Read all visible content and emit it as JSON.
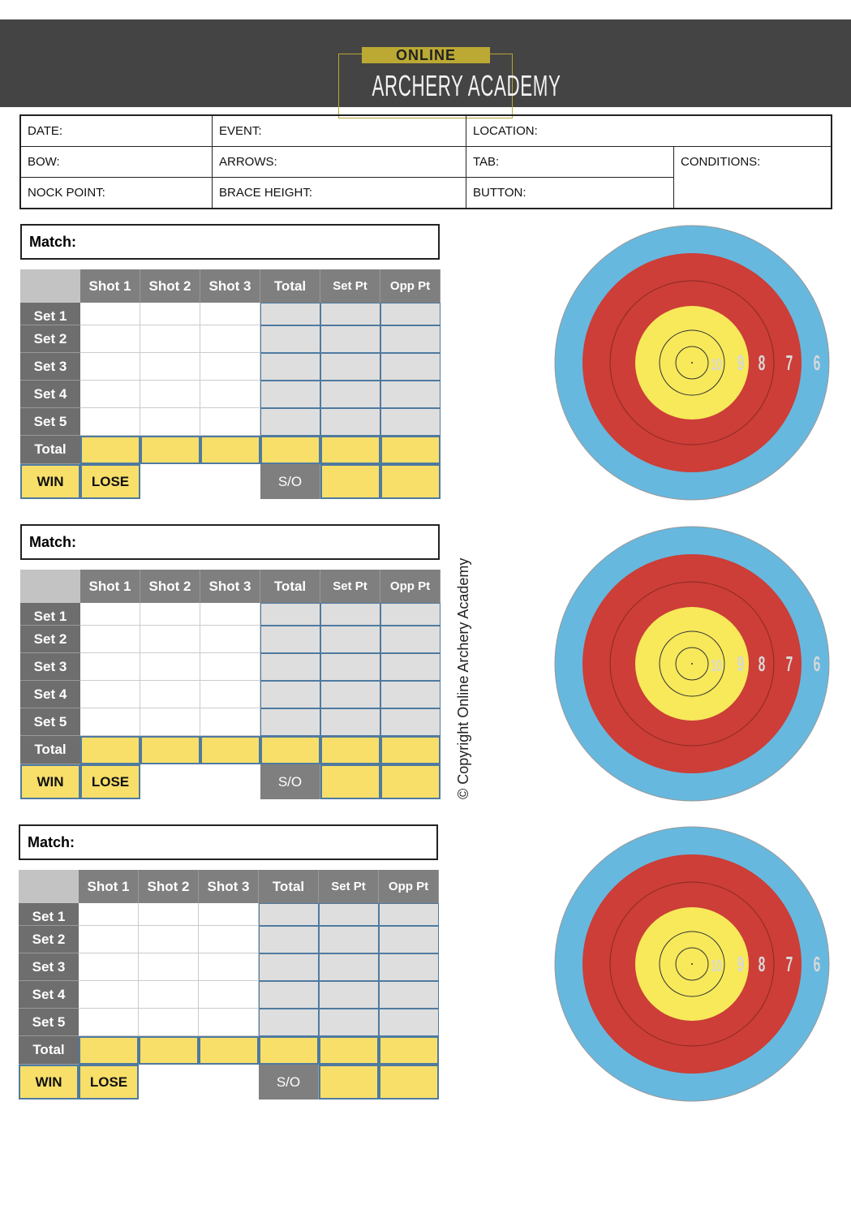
{
  "logo": {
    "top": "ONLINE",
    "main": "ARCHERY ACADEMY"
  },
  "info": {
    "date": "DATE:",
    "event": "EVENT:",
    "location": "LOCATION:",
    "bow": "BOW:",
    "arrows": "ARROWS:",
    "tab": "TAB:",
    "conditions": "CONDITIONS:",
    "nock_point": "NOCK POINT:",
    "brace_height": "BRACE HEIGHT:",
    "button": "BUTTON:"
  },
  "match_label": "Match:",
  "columns": [
    "Shot 1",
    "Shot 2",
    "Shot 3",
    "Total",
    "Set Pt",
    "Opp Pt"
  ],
  "rows": [
    "Set 1",
    "Set 2",
    "Set 3",
    "Set 4",
    "Set 5"
  ],
  "total_label": "Total",
  "win": "WIN",
  "lose": "LOSE",
  "so": "S/O",
  "target": {
    "rings": [
      "10",
      "9",
      "8",
      "7",
      "6"
    ],
    "colors": {
      "blue": "#67b8de",
      "red": "#cc3e37",
      "yellow": "#f7e95a",
      "numbers": "#d8d8d8"
    }
  },
  "copyright": "© Copyright Online Archery Academy"
}
